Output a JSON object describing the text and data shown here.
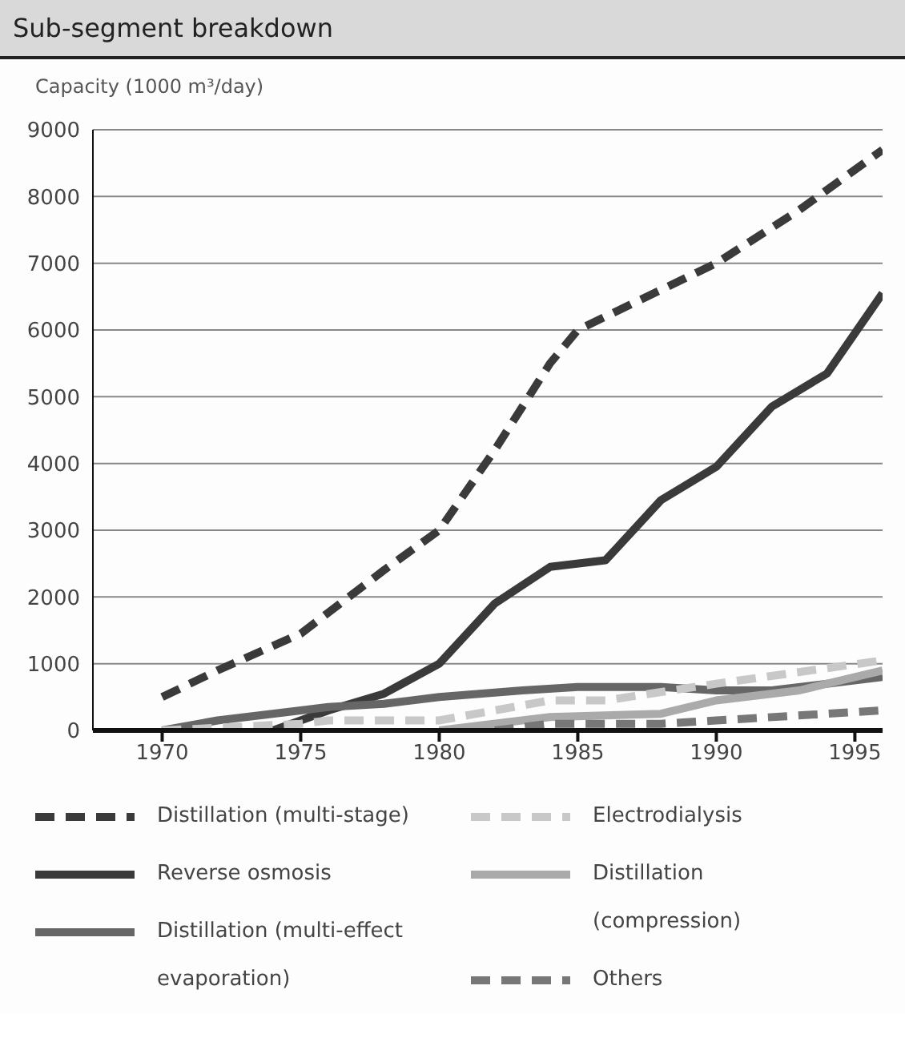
{
  "chart_data": {
    "type": "line",
    "title": "Sub-segment breakdown",
    "ylabel": "Capacity (1000 m³/day)",
    "xlim": [
      1967.5,
      1996
    ],
    "xticks": [
      1970,
      1975,
      1980,
      1985,
      1990,
      1995
    ],
    "ylim": [
      0,
      9000
    ],
    "yticks": [
      0,
      1000,
      2000,
      3000,
      4000,
      5000,
      6000,
      7000,
      8000,
      9000
    ],
    "grid": "y",
    "legend": "bottom",
    "marker": "none",
    "series": [
      {
        "name": "Distillation (multi-stage)",
        "color": "#3a3a3a",
        "line_style": "dashed",
        "x": [
          1970,
          1972,
          1975,
          1978,
          1980,
          1982,
          1984,
          1985,
          1988,
          1990,
          1993,
          1996
        ],
        "values": [
          500,
          900,
          1450,
          2400,
          3000,
          4200,
          5500,
          6000,
          6600,
          7000,
          7800,
          8700
        ]
      },
      {
        "name": "Reverse osmosis",
        "color": "#3a3a3a",
        "line_style": "solid",
        "x": [
          1974,
          1976,
          1978,
          1980,
          1982,
          1984,
          1986,
          1988,
          1990,
          1992,
          1994,
          1996
        ],
        "values": [
          0,
          300,
          550,
          1000,
          1900,
          2450,
          2550,
          3450,
          3950,
          4850,
          5350,
          6550
        ]
      },
      {
        "name": "Distillation (multi-effect evaporation)",
        "color": "#666666",
        "line_style": "solid",
        "x": [
          1970,
          1972,
          1975,
          1976,
          1978,
          1980,
          1983,
          1985,
          1988,
          1990,
          1992,
          1996
        ],
        "values": [
          0,
          150,
          300,
          350,
          400,
          500,
          600,
          650,
          650,
          600,
          600,
          800
        ]
      },
      {
        "name": "Electrodialysis",
        "color": "#c8c8c8",
        "line_style": "dashed",
        "x": [
          1970,
          1975,
          1976,
          1980,
          1984,
          1986,
          1990,
          1996
        ],
        "values": [
          0,
          100,
          150,
          150,
          450,
          450,
          700,
          1050
        ]
      },
      {
        "name": "Distillation (compression)",
        "color": "#aaaaaa",
        "line_style": "solid",
        "x": [
          1980,
          1984,
          1988,
          1990,
          1993,
          1996
        ],
        "values": [
          0,
          200,
          250,
          450,
          600,
          900
        ]
      },
      {
        "name": "Others",
        "color": "#777777",
        "line_style": "dashed",
        "x": [
          1982,
          1984,
          1988,
          1990,
          1996
        ],
        "values": [
          0,
          100,
          100,
          150,
          300
        ]
      }
    ]
  }
}
